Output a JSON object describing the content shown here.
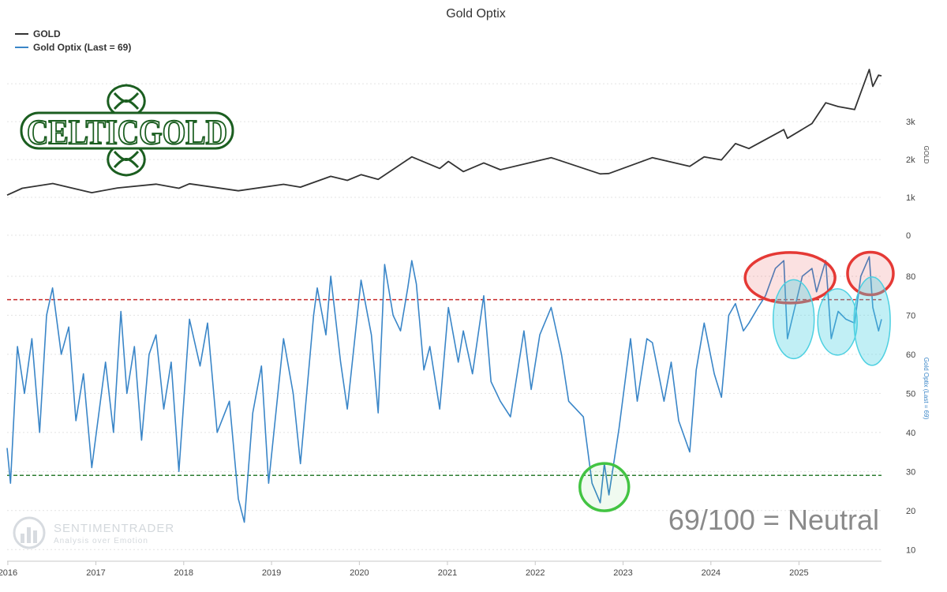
{
  "chart_data": {
    "type": "line",
    "title": "Gold Optix",
    "legend": {
      "placement": "top-left",
      "entries": [
        {
          "label": "GOLD",
          "color": "#333333"
        },
        {
          "label": "Gold Optix (Last = 69)",
          "color": "#3a86c8"
        }
      ]
    },
    "x_axis": {
      "type": "date",
      "range": [
        "2015-12-29",
        "2025-12-10"
      ],
      "ticks": [
        "2016",
        "2017",
        "2018",
        "2019",
        "2020",
        "2021",
        "2022",
        "2023",
        "2024",
        "2025"
      ]
    },
    "panels": [
      {
        "name": "price",
        "axis_title": "GOLD",
        "ylim": [
          0,
          4400
        ],
        "ticks": [
          {
            "value": 0,
            "label": "0"
          },
          {
            "value": 1000,
            "label": "1k"
          },
          {
            "value": 2000,
            "label": "2k"
          },
          {
            "value": 3000,
            "label": "3k"
          }
        ],
        "series": [
          {
            "name": "GOLD",
            "color": "#333333",
            "points": [
              [
                "2015-12-29",
                1060
              ],
              [
                "2016-03-01",
                1240
              ],
              [
                "2016-07-06",
                1365
              ],
              [
                "2016-12-15",
                1125
              ],
              [
                "2017-04-01",
                1250
              ],
              [
                "2017-09-08",
                1350
              ],
              [
                "2017-12-12",
                1240
              ],
              [
                "2018-01-25",
                1360
              ],
              [
                "2018-08-16",
                1175
              ],
              [
                "2019-02-20",
                1345
              ],
              [
                "2019-05-01",
                1270
              ],
              [
                "2019-09-04",
                1555
              ],
              [
                "2019-11-12",
                1450
              ],
              [
                "2020-01-08",
                1600
              ],
              [
                "2020-03-19",
                1475
              ],
              [
                "2020-08-06",
                2070
              ],
              [
                "2020-11-30",
                1765
              ],
              [
                "2021-01-05",
                1950
              ],
              [
                "2021-03-08",
                1680
              ],
              [
                "2021-06-01",
                1910
              ],
              [
                "2021-08-09",
                1730
              ],
              [
                "2022-03-08",
                2050
              ],
              [
                "2022-09-28",
                1620
              ],
              [
                "2022-11-03",
                1630
              ],
              [
                "2023-05-03",
                2050
              ],
              [
                "2023-10-05",
                1820
              ],
              [
                "2023-12-04",
                2070
              ],
              [
                "2024-02-14",
                1990
              ],
              [
                "2024-04-12",
                2420
              ],
              [
                "2024-06-07",
                2290
              ],
              [
                "2024-10-30",
                2790
              ],
              [
                "2024-11-14",
                2560
              ],
              [
                "2025-02-24",
                2950
              ],
              [
                "2025-04-22",
                3500
              ],
              [
                "2025-06-13",
                3400
              ],
              [
                "2025-08-20",
                3320
              ],
              [
                "2025-10-20",
                4380
              ],
              [
                "2025-11-04",
                3930
              ],
              [
                "2025-11-28",
                4230
              ],
              [
                "2025-12-10",
                4210
              ]
            ]
          }
        ]
      },
      {
        "name": "optix",
        "axis_title": "Gold Optix (Last = 69)",
        "ylim": [
          5,
          100
        ],
        "ticks": [
          {
            "value": 10,
            "label": "10"
          },
          {
            "value": 20,
            "label": "20"
          },
          {
            "value": 30,
            "label": "30"
          },
          {
            "value": 40,
            "label": "40"
          },
          {
            "value": 50,
            "label": "50"
          },
          {
            "value": 60,
            "label": "60"
          },
          {
            "value": 70,
            "label": "70"
          },
          {
            "value": 80,
            "label": "80"
          }
        ],
        "reference_lines": [
          {
            "value": 74,
            "color": "#c62828",
            "style": "dashed"
          },
          {
            "value": 29,
            "color": "#2e7d32",
            "style": "dashed"
          }
        ],
        "series": [
          {
            "name": "Gold Optix",
            "color": "#3a86c8",
            "last": 69,
            "points": [
              [
                "2015-12-29",
                36
              ],
              [
                "2016-01-12",
                27
              ],
              [
                "2016-02-10",
                62
              ],
              [
                "2016-03-10",
                50
              ],
              [
                "2016-04-10",
                64
              ],
              [
                "2016-05-12",
                40
              ],
              [
                "2016-06-10",
                70
              ],
              [
                "2016-07-05",
                77
              ],
              [
                "2016-08-10",
                60
              ],
              [
                "2016-09-10",
                67
              ],
              [
                "2016-10-10",
                43
              ],
              [
                "2016-11-10",
                55
              ],
              [
                "2016-12-15",
                31
              ],
              [
                "2017-02-10",
                58
              ],
              [
                "2017-03-15",
                40
              ],
              [
                "2017-04-15",
                71
              ],
              [
                "2017-05-10",
                50
              ],
              [
                "2017-06-10",
                62
              ],
              [
                "2017-07-10",
                38
              ],
              [
                "2017-08-10",
                60
              ],
              [
                "2017-09-08",
                65
              ],
              [
                "2017-10-10",
                46
              ],
              [
                "2017-11-10",
                58
              ],
              [
                "2017-12-12",
                30
              ],
              [
                "2018-01-25",
                69
              ],
              [
                "2018-03-10",
                57
              ],
              [
                "2018-04-10",
                68
              ],
              [
                "2018-05-20",
                40
              ],
              [
                "2018-07-10",
                48
              ],
              [
                "2018-08-16",
                23
              ],
              [
                "2018-09-10",
                17
              ],
              [
                "2018-10-15",
                45
              ],
              [
                "2018-11-20",
                57
              ],
              [
                "2018-12-20",
                27
              ],
              [
                "2019-02-20",
                64
              ],
              [
                "2019-04-01",
                50
              ],
              [
                "2019-05-01",
                32
              ],
              [
                "2019-06-25",
                70
              ],
              [
                "2019-07-10",
                77
              ],
              [
                "2019-08-15",
                65
              ],
              [
                "2019-09-04",
                80
              ],
              [
                "2019-10-15",
                58
              ],
              [
                "2019-11-12",
                46
              ],
              [
                "2020-01-08",
                79
              ],
              [
                "2020-02-20",
                65
              ],
              [
                "2020-03-19",
                45
              ],
              [
                "2020-04-15",
                83
              ],
              [
                "2020-05-20",
                70
              ],
              [
                "2020-06-20",
                66
              ],
              [
                "2020-07-20",
                77
              ],
              [
                "2020-08-06",
                84
              ],
              [
                "2020-08-25",
                78
              ],
              [
                "2020-09-25",
                56
              ],
              [
                "2020-10-20",
                62
              ],
              [
                "2020-11-30",
                46
              ],
              [
                "2021-01-05",
                72
              ],
              [
                "2021-02-15",
                58
              ],
              [
                "2021-03-08",
                66
              ],
              [
                "2021-04-15",
                55
              ],
              [
                "2021-06-01",
                75
              ],
              [
                "2021-07-01",
                53
              ],
              [
                "2021-08-09",
                48
              ],
              [
                "2021-09-20",
                44
              ],
              [
                "2021-11-15",
                66
              ],
              [
                "2021-12-15",
                51
              ],
              [
                "2022-01-20",
                65
              ],
              [
                "2022-03-08",
                72
              ],
              [
                "2022-04-20",
                60
              ],
              [
                "2022-05-20",
                48
              ],
              [
                "2022-07-20",
                44
              ],
              [
                "2022-08-25",
                27
              ],
              [
                "2022-09-28",
                22
              ],
              [
                "2022-10-15",
                32
              ],
              [
                "2022-11-03",
                24
              ],
              [
                "2022-12-15",
                41
              ],
              [
                "2023-02-01",
                64
              ],
              [
                "2023-03-01",
                48
              ],
              [
                "2023-04-10",
                64
              ],
              [
                "2023-05-03",
                63
              ],
              [
                "2023-06-20",
                48
              ],
              [
                "2023-07-20",
                58
              ],
              [
                "2023-08-20",
                43
              ],
              [
                "2023-10-05",
                35
              ],
              [
                "2023-11-01",
                56
              ],
              [
                "2023-12-04",
                68
              ],
              [
                "2024-01-15",
                55
              ],
              [
                "2024-02-14",
                49
              ],
              [
                "2024-03-15",
                70
              ],
              [
                "2024-04-12",
                73
              ],
              [
                "2024-05-15",
                66
              ],
              [
                "2024-06-07",
                68
              ],
              [
                "2024-07-15",
                72
              ],
              [
                "2024-08-15",
                75
              ],
              [
                "2024-09-25",
                82
              ],
              [
                "2024-10-30",
                84
              ],
              [
                "2024-11-14",
                64
              ],
              [
                "2024-12-15",
                72
              ],
              [
                "2025-01-15",
                80
              ],
              [
                "2025-02-24",
                82
              ],
              [
                "2025-03-15",
                76
              ],
              [
                "2025-04-22",
                84
              ],
              [
                "2025-05-15",
                64
              ],
              [
                "2025-06-13",
                71
              ],
              [
                "2025-07-15",
                69
              ],
              [
                "2025-08-20",
                68
              ],
              [
                "2025-09-15",
                80
              ],
              [
                "2025-10-20",
                85
              ],
              [
                "2025-11-04",
                72
              ],
              [
                "2025-11-28",
                66
              ],
              [
                "2025-12-10",
                69
              ]
            ]
          }
        ]
      }
    ],
    "annotations": [
      {
        "shape": "ellipse",
        "color": "red",
        "panel": "optix",
        "x_center": "2024-11-25",
        "y_center": 79.6
      },
      {
        "shape": "ellipse",
        "color": "red",
        "panel": "optix",
        "x_center": "2025-10-25",
        "y_center": 80.7
      },
      {
        "shape": "ellipse",
        "color": "cyan",
        "panel": "optix",
        "x_center": "2024-12-10",
        "y_center": 69.0
      },
      {
        "shape": "ellipse",
        "color": "cyan",
        "panel": "optix",
        "x_center": "2025-06-10",
        "y_center": 68.3
      },
      {
        "shape": "ellipse",
        "color": "cyan",
        "panel": "optix",
        "x_center": "2025-11-01",
        "y_center": 68.5
      },
      {
        "shape": "ellipse",
        "color": "green",
        "panel": "optix",
        "x_center": "2022-10-15",
        "y_center": 26.0
      }
    ]
  },
  "logo": {
    "text": "CELTICGOLD",
    "color": "#1b5e20"
  },
  "watermark": {
    "brand": "SENTIMENTRADER",
    "tagline": "Analysis over Emotion"
  },
  "status_text": "69/100 = Neutral"
}
